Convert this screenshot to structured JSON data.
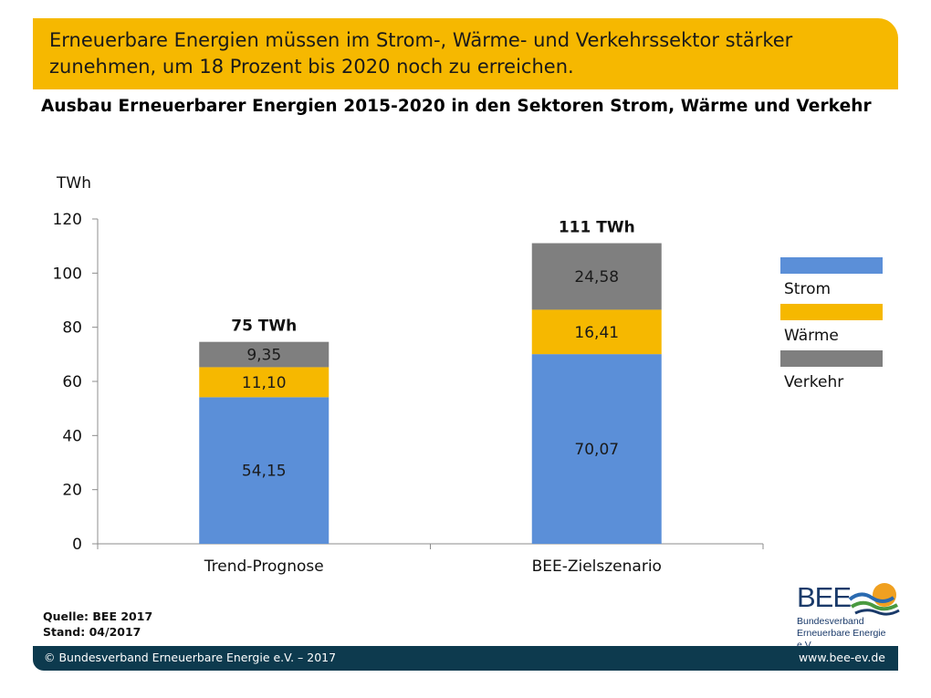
{
  "banner": {
    "line1": "Erneuerbare Energien müssen im Strom-, Wärme- und Verkehrssektor stärker",
    "line2": "zunehmen, um 18 Prozent bis 2020 noch zu erreichen."
  },
  "subtitle": "Ausbau Erneuerbarer Energien 2015-2020 in den Sektoren Strom, Wärme und Verkehr",
  "chart_data": {
    "type": "bar",
    "stacked": true,
    "title": "",
    "ylabel": "TWh",
    "xlabel": "",
    "ylim": [
      0,
      120
    ],
    "yticks": [
      0,
      20,
      40,
      60,
      80,
      100,
      120
    ],
    "categories": [
      "Trend-Prognose",
      "BEE-Zielszenario"
    ],
    "totals": [
      "75 TWh",
      "111 TWh"
    ],
    "series": [
      {
        "name": "Strom",
        "values": [
          54.15,
          70.07
        ],
        "labels": [
          "54,15",
          "70,07"
        ],
        "color": "#5b8fd8"
      },
      {
        "name": "Wärme",
        "values": [
          11.1,
          16.41
        ],
        "labels": [
          "11,10",
          "16,41"
        ],
        "color": "#f6b800"
      },
      {
        "name": "Verkehr",
        "values": [
          9.35,
          24.58
        ],
        "labels": [
          "9,35",
          "24,58"
        ],
        "color": "#7f7f7f"
      }
    ],
    "grid": false,
    "legend_position": "right"
  },
  "source": {
    "line1": "Quelle: BEE 2017",
    "line2": "Stand: 04/2017"
  },
  "logo": {
    "name": "BEE",
    "line1": "Bundesverband",
    "line2": "Erneuerbare Energie e.V."
  },
  "footer": {
    "left": "© Bundesverband Erneuerbare Energie e.V. – 2017",
    "right": "www.bee-ev.de"
  }
}
